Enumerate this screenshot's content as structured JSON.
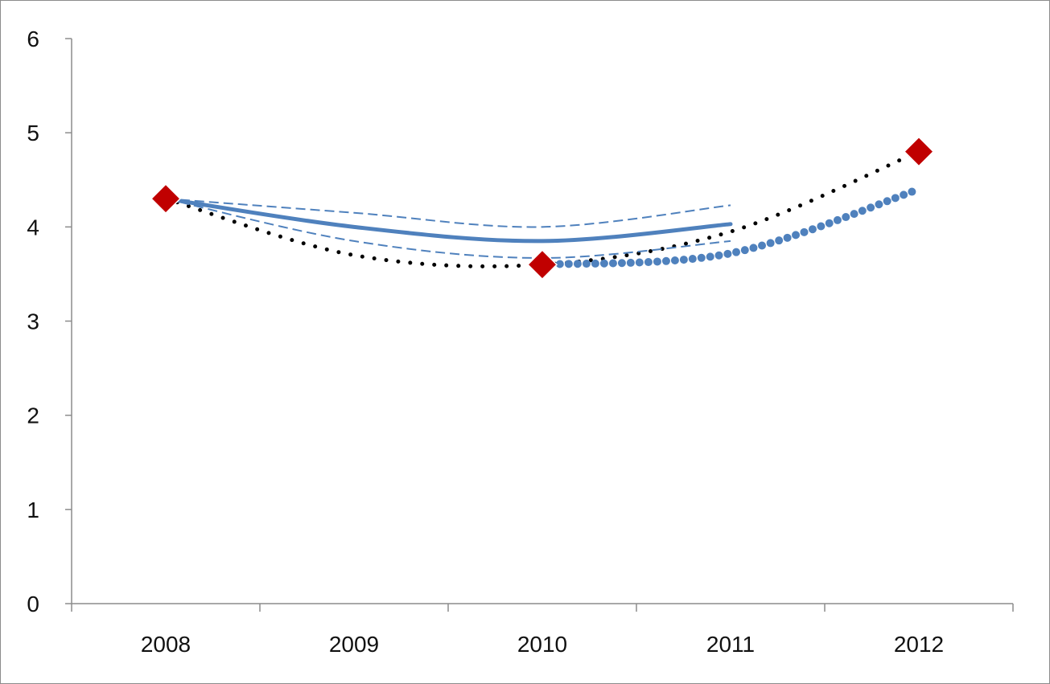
{
  "chart_data": {
    "type": "line",
    "title": "",
    "xlabel": "",
    "ylabel": "",
    "categories": [
      "2008",
      "2009",
      "2010",
      "2011",
      "2012"
    ],
    "ylim": [
      0,
      6
    ],
    "yticks": [
      0,
      1,
      2,
      3,
      4,
      5,
      6
    ],
    "grid": false,
    "legend": "none",
    "series": [
      {
        "style": "markers",
        "marker": "diamond",
        "color": "#c00000",
        "points": [
          {
            "x": "2008",
            "y": 4.3
          },
          {
            "x": "2010",
            "y": 3.6
          },
          {
            "x": "2012",
            "y": 4.8
          }
        ]
      },
      {
        "style": "dotted-curve",
        "color": "#000000",
        "points": [
          {
            "x": "2008",
            "y": 4.3
          },
          {
            "x": "2009",
            "y": 3.7
          },
          {
            "x": "2010",
            "y": 3.6
          },
          {
            "x": "2011",
            "y": 3.95
          },
          {
            "x": "2012",
            "y": 4.8
          }
        ]
      },
      {
        "style": "solid-curve",
        "color": "#4f81bd",
        "points": [
          {
            "x": "2008",
            "y": 4.3
          },
          {
            "x": "2009",
            "y": 4.0
          },
          {
            "x": "2010",
            "y": 3.85
          },
          {
            "x": "2011",
            "y": 4.03
          }
        ]
      },
      {
        "style": "dashed-upper",
        "color": "#4f81bd",
        "points": [
          {
            "x": "2008",
            "y": 4.3
          },
          {
            "x": "2009",
            "y": 4.15
          },
          {
            "x": "2010",
            "y": 4.0
          },
          {
            "x": "2011",
            "y": 4.23
          }
        ]
      },
      {
        "style": "dashed-lower",
        "color": "#4f81bd",
        "points": [
          {
            "x": "2008",
            "y": 4.3
          },
          {
            "x": "2009",
            "y": 3.85
          },
          {
            "x": "2010",
            "y": 3.67
          },
          {
            "x": "2011",
            "y": 3.85
          }
        ]
      },
      {
        "style": "thick-dotted-curve",
        "color": "#4f81bd",
        "points": [
          {
            "x": "2010",
            "y": 3.6
          },
          {
            "x": "2011",
            "y": 3.72
          },
          {
            "x": "2012",
            "y": 4.4
          }
        ]
      }
    ]
  }
}
